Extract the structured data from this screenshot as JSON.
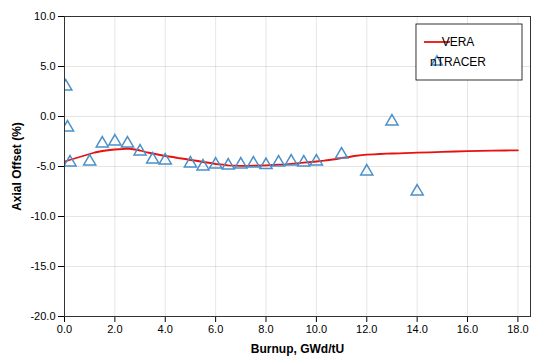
{
  "chart_data": {
    "type": "line",
    "xlabel": "Burnup, GWd/tU",
    "ylabel": "Axial Offset (%)",
    "xlim": [
      0.0,
      18.5
    ],
    "ylim": [
      -20.0,
      10.0
    ],
    "xticks": [
      {
        "value": 0.0,
        "label": "0.0"
      },
      {
        "value": 2.0,
        "label": "2.0"
      },
      {
        "value": 4.0,
        "label": "4.0"
      },
      {
        "value": 6.0,
        "label": "6.0"
      },
      {
        "value": 8.0,
        "label": "8.0"
      },
      {
        "value": 10.0,
        "label": "10.0"
      },
      {
        "value": 12.0,
        "label": "12.0"
      },
      {
        "value": 14.0,
        "label": "14.0"
      },
      {
        "value": 16.0,
        "label": "16.0"
      },
      {
        "value": 18.0,
        "label": "18.0"
      }
    ],
    "yticks": [
      {
        "value": -20.0,
        "label": "-20.0"
      },
      {
        "value": -15.0,
        "label": "-15.0"
      },
      {
        "value": -10.0,
        "label": "-10.0"
      },
      {
        "value": -5.0,
        "label": "-5.0"
      },
      {
        "value": 0.0,
        "label": "0.0"
      },
      {
        "value": 5.0,
        "label": "5.0"
      },
      {
        "value": 10.0,
        "label": "10.0"
      }
    ],
    "grid": true,
    "legend": "upper right",
    "series": [
      {
        "name": "VERA",
        "type": "line",
        "color": "#e81010",
        "x": [
          0.0,
          0.2,
          0.4,
          0.6,
          0.8,
          1.0,
          1.2,
          1.5,
          1.8,
          2.0,
          2.3,
          2.5,
          2.8,
          3.0,
          3.3,
          3.5,
          3.8,
          4.0,
          4.3,
          4.5,
          4.8,
          5.0,
          5.3,
          5.5,
          5.8,
          6.0,
          6.3,
          6.5,
          6.8,
          7.0,
          7.3,
          7.5,
          7.8,
          8.0,
          8.3,
          8.5,
          8.8,
          9.0,
          9.3,
          9.5,
          9.8,
          10.0,
          10.3,
          10.5,
          10.8,
          11.0,
          11.3,
          11.5,
          11.8,
          12.0,
          12.3,
          12.5,
          12.8,
          13.0,
          13.3,
          13.5,
          13.8,
          14.0,
          14.5,
          15.0,
          15.5,
          16.0,
          16.5,
          17.0,
          17.5,
          18.0
        ],
        "values": [
          -4.5,
          -4.35,
          -4.2,
          -4.05,
          -3.9,
          -3.75,
          -3.6,
          -3.45,
          -3.35,
          -3.3,
          -3.25,
          -3.2,
          -3.3,
          -3.4,
          -3.6,
          -3.7,
          -3.85,
          -3.95,
          -4.05,
          -4.15,
          -4.25,
          -4.35,
          -4.45,
          -4.55,
          -4.65,
          -4.75,
          -4.82,
          -4.88,
          -4.92,
          -4.93,
          -4.93,
          -4.92,
          -4.9,
          -4.88,
          -4.85,
          -4.82,
          -4.78,
          -4.73,
          -4.67,
          -4.62,
          -4.55,
          -4.5,
          -4.42,
          -4.35,
          -4.25,
          -4.15,
          -4.05,
          -3.95,
          -3.87,
          -3.82,
          -3.78,
          -3.75,
          -3.72,
          -3.7,
          -3.68,
          -3.66,
          -3.64,
          -3.62,
          -3.58,
          -3.54,
          -3.5,
          -3.47,
          -3.44,
          -3.42,
          -3.4,
          -3.38
        ]
      },
      {
        "name": "nTRACER",
        "type": "scatter",
        "color": "#4a90c8",
        "marker": "triangle",
        "x": [
          0.05,
          0.12,
          0.22,
          1.0,
          1.5,
          2.0,
          2.5,
          3.0,
          3.5,
          4.0,
          5.0,
          5.5,
          6.0,
          6.5,
          7.0,
          7.5,
          8.0,
          8.5,
          9.0,
          9.5,
          10.0,
          11.0,
          12.0,
          13.0,
          14.0
        ],
        "values": [
          3.0,
          -1.1,
          -4.6,
          -4.5,
          -2.7,
          -2.5,
          -2.7,
          -3.5,
          -4.3,
          -4.4,
          -4.7,
          -5.0,
          -4.8,
          -4.9,
          -4.8,
          -4.7,
          -4.85,
          -4.6,
          -4.5,
          -4.6,
          -4.5,
          -3.8,
          -5.5,
          -0.5,
          -7.5
        ]
      }
    ]
  }
}
